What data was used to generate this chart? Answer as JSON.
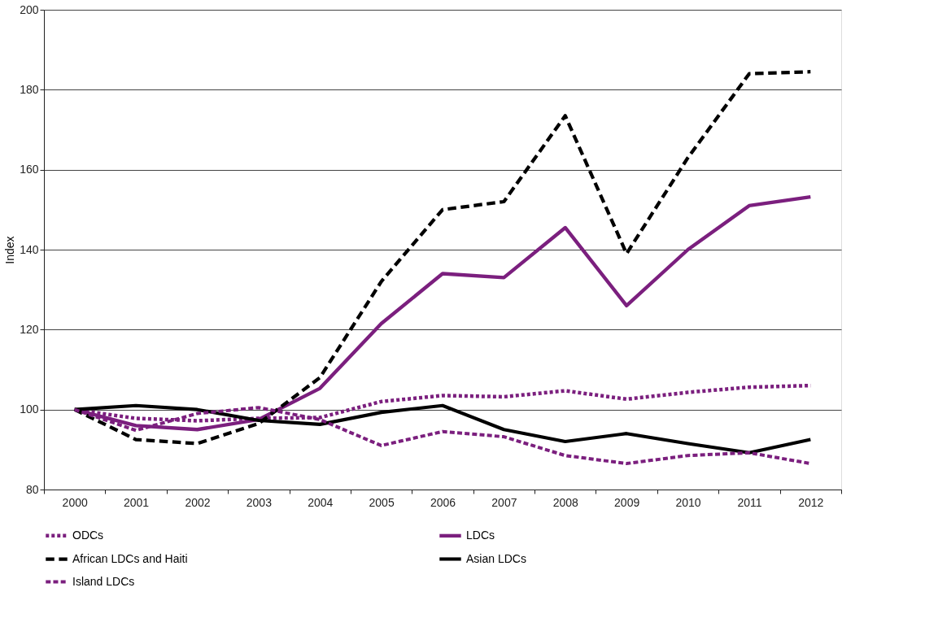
{
  "chart_data": {
    "type": "line",
    "ylabel": "Index",
    "categories": [
      "2000",
      "2001",
      "2002",
      "2003",
      "2004",
      "2005",
      "2006",
      "2007",
      "2008",
      "2009",
      "2010",
      "2011",
      "2012"
    ],
    "ylim": [
      80,
      200
    ],
    "yticks": [
      80,
      100,
      120,
      140,
      160,
      180,
      200
    ],
    "grid": "y",
    "legend": "bottom",
    "series": [
      {
        "name": "ODCs",
        "color": "#7b1f7e",
        "line_style": "dotted",
        "values": [
          100,
          97.8,
          97.2,
          97.8,
          98,
          102,
          103.5,
          103.2,
          104.7,
          102.6,
          104.3,
          105.6,
          106
        ]
      },
      {
        "name": "LDCs",
        "color": "#7b1f7e",
        "line_style": "solid",
        "values": [
          100,
          96,
          95,
          97.5,
          105.3,
          121.5,
          134,
          133,
          145.5,
          126,
          140,
          151,
          153.2
        ]
      },
      {
        "name": "African LDCs and Haiti",
        "color": "#000000",
        "line_style": "dashed",
        "values": [
          100,
          92.5,
          91.5,
          96.5,
          108,
          132,
          150,
          152,
          173.5,
          139,
          163,
          184,
          184.5
        ]
      },
      {
        "name": "Asian LDCs",
        "color": "#000000",
        "line_style": "solid",
        "values": [
          100,
          101,
          100,
          97.3,
          96.3,
          99.3,
          101,
          95,
          92,
          94,
          91.5,
          89.2,
          92.5
        ]
      },
      {
        "name": "Island LDCs",
        "color": "#7b1f7e",
        "line_style": "dashed",
        "values": [
          100,
          94.8,
          99,
          100.5,
          97.5,
          91,
          94.5,
          93.2,
          88.5,
          86.5,
          88.5,
          89.2,
          86.5
        ]
      }
    ]
  }
}
